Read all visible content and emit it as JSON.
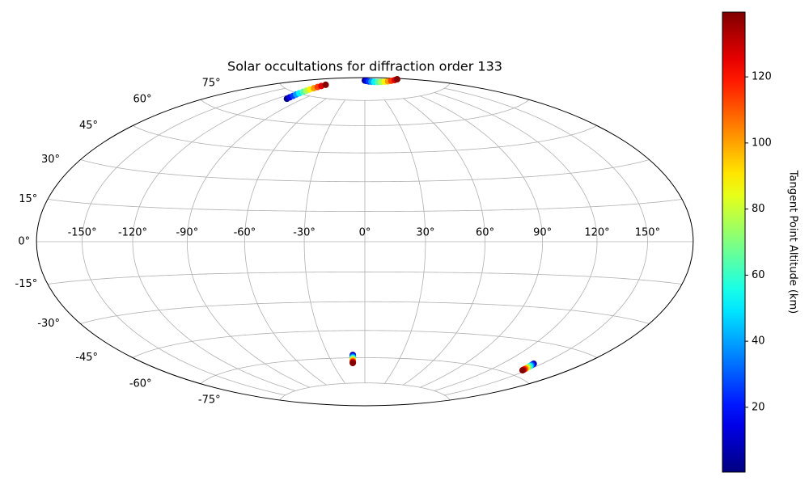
{
  "chart_data": {
    "type": "scatter",
    "projection": "hammer",
    "title": "Solar occultations for diffraction order 133",
    "grid": true,
    "colormap": "jet",
    "xticks": [
      {
        "value": -150,
        "label": "-150°"
      },
      {
        "value": -120,
        "label": "-120°"
      },
      {
        "value": -90,
        "label": "-90°"
      },
      {
        "value": -60,
        "label": "-60°"
      },
      {
        "value": -30,
        "label": "-30°"
      },
      {
        "value": 0,
        "label": "0°"
      },
      {
        "value": 30,
        "label": "30°"
      },
      {
        "value": 60,
        "label": "60°"
      },
      {
        "value": 90,
        "label": "90°"
      },
      {
        "value": 120,
        "label": "120°"
      },
      {
        "value": 150,
        "label": "150°"
      }
    ],
    "yticks": [
      {
        "value": -75,
        "label": "-75°"
      },
      {
        "value": -60,
        "label": "-60°"
      },
      {
        "value": -45,
        "label": "-45°"
      },
      {
        "value": -30,
        "label": "-30°"
      },
      {
        "value": -15,
        "label": "-15°"
      },
      {
        "value": 0,
        "label": "0°"
      },
      {
        "value": 15,
        "label": "15°"
      },
      {
        "value": 30,
        "label": "30°"
      },
      {
        "value": 45,
        "label": "45°"
      },
      {
        "value": 60,
        "label": "60°"
      },
      {
        "value": 75,
        "label": "75°"
      }
    ],
    "x": [
      -109,
      -110,
      -111,
      -112,
      -113,
      -114,
      -115,
      -116,
      -117,
      -118,
      -119,
      -120,
      0,
      15,
      31,
      46,
      61,
      77,
      92,
      108,
      123,
      138,
      154,
      169,
      -9.9,
      -10,
      -10.1,
      -10.2,
      -10.3,
      -10.4,
      -10.6,
      -10.7,
      -10.8,
      -10.9,
      -11.0,
      -11.2,
      144,
      144.2,
      144.5,
      144.7,
      144.9,
      145.2,
      145.4,
      145.7,
      145.9,
      146.1,
      146.4,
      146.6
    ],
    "y": [
      71.5,
      72.4,
      73.4,
      74.3,
      75.2,
      76.2,
      77.1,
      78.0,
      79.0,
      79.9,
      80.8,
      81.8,
      88,
      87.7,
      87.3,
      87,
      86.7,
      86.3,
      86,
      85.6,
      85.3,
      85,
      84.6,
      84.3,
      -58.4,
      -58.8,
      -59.2,
      -59.7,
      -60.1,
      -60.5,
      -60.9,
      -61.3,
      -61.7,
      -62.2,
      -62.6,
      -63.0,
      -54,
      -54.3,
      -54.6,
      -54.9,
      -55.2,
      -55.5,
      -55.9,
      -56.2,
      -56.5,
      -56.8,
      -57.1,
      -57.4
    ],
    "values": [
      1,
      14,
      26,
      39,
      51,
      64,
      76,
      89,
      101,
      114,
      126,
      139,
      1,
      14,
      26,
      39,
      51,
      64,
      76,
      89,
      101,
      114,
      126,
      139,
      1,
      14,
      26,
      39,
      51,
      64,
      76,
      89,
      101,
      114,
      126,
      139,
      1,
      14,
      26,
      39,
      51,
      64,
      76,
      89,
      101,
      114,
      126,
      139
    ],
    "colorbar": {
      "label": "Tangent Point Altitude (km)",
      "clim": [
        0.4,
        139.6
      ],
      "ticks": [
        20,
        40,
        60,
        80,
        100,
        120
      ]
    }
  }
}
